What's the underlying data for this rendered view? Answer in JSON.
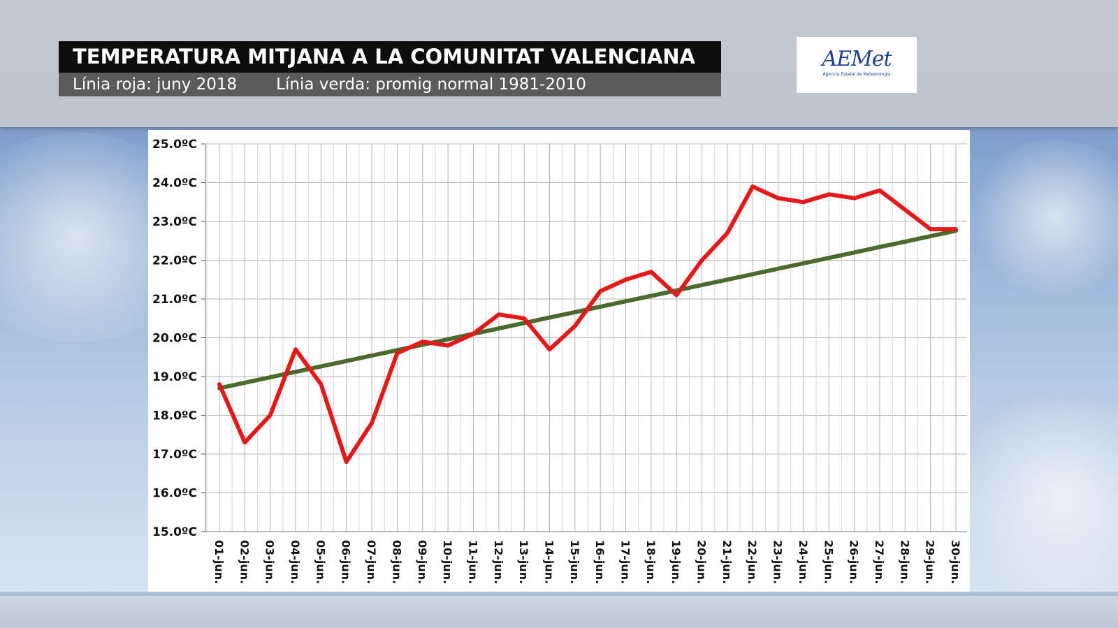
{
  "header": {
    "title": "TEMPERATURA MITJANA A LA COMUNITAT VALENCIANA",
    "subtitle_red": "Línia roja: juny 2018",
    "subtitle_green": "Línia verda: promig normal 1981-2010"
  },
  "logo": {
    "text": "AEMet",
    "subtext": "Agencia Estatal de Meteorología"
  },
  "colors": {
    "actual_line": "#e31a1a",
    "normal_line": "#4a6a2e",
    "grid": "#b4b4b4",
    "title_bg": "#0d0d0d",
    "subtitle_bg": "#5a5a5a"
  },
  "chart_data": {
    "type": "line",
    "title": "TEMPERATURA MITJANA A LA COMUNITAT VALENCIANA",
    "categories": [
      "01-jun.",
      "02-jun.",
      "03-jun.",
      "04-jun.",
      "05-jun.",
      "06-jun.",
      "07-jun.",
      "08-jun.",
      "09-jun.",
      "10-jun.",
      "11-jun.",
      "12-jun.",
      "13-jun.",
      "14-jun.",
      "15-jun.",
      "16-jun.",
      "17-jun.",
      "18-jun.",
      "19-jun.",
      "20-jun.",
      "21-jun.",
      "22-jun.",
      "23-jun.",
      "24-jun.",
      "25-jun.",
      "26-jun.",
      "27-jun.",
      "28-jun.",
      "29-jun.",
      "30-jun."
    ],
    "y_ticks": [
      "15.0ºC",
      "16.0ºC",
      "17.0ºC",
      "18.0ºC",
      "19.0ºC",
      "20.0ºC",
      "21.0ºC",
      "22.0ºC",
      "23.0ºC",
      "24.0ºC",
      "25.0ºC"
    ],
    "ylim": [
      15,
      25
    ],
    "grid": true,
    "series": [
      {
        "key": "actual",
        "color": "#e31a1a",
        "values": [
          18.8,
          17.3,
          18.0,
          19.7,
          18.8,
          16.8,
          17.8,
          19.6,
          19.9,
          19.8,
          20.1,
          20.6,
          20.5,
          19.7,
          20.3,
          21.2,
          21.5,
          21.7,
          21.1,
          22.0,
          22.7,
          23.9,
          23.6,
          23.5,
          23.7,
          23.6,
          23.8,
          23.3,
          22.8,
          22.8
        ]
      },
      {
        "key": "normal",
        "color": "#4a6a2e",
        "values": [
          18.7,
          18.84,
          18.98,
          19.12,
          19.26,
          19.4,
          19.54,
          19.68,
          19.82,
          19.96,
          20.1,
          20.24,
          20.38,
          20.52,
          20.66,
          20.8,
          20.94,
          21.08,
          21.22,
          21.36,
          21.5,
          21.64,
          21.78,
          21.92,
          22.06,
          22.2,
          22.34,
          22.48,
          22.62,
          22.76
        ]
      }
    ]
  }
}
